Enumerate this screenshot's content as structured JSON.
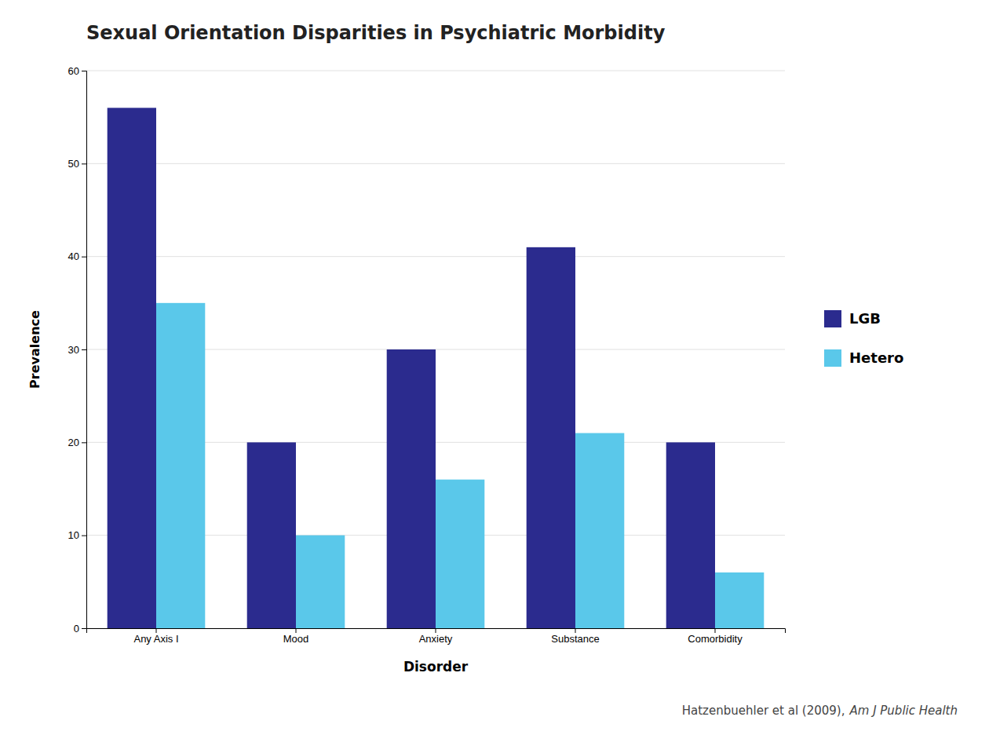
{
  "chart_data": {
    "type": "bar",
    "title": "Sexual Orientation Disparities in Psychiatric Morbidity",
    "categories": [
      "Any Axis I",
      "Mood",
      "Anxiety",
      "Substance",
      "Comorbidity"
    ],
    "series": [
      {
        "name": "LGB",
        "color": "#2b2b8e",
        "values": [
          56,
          20,
          30,
          41,
          20
        ]
      },
      {
        "name": "Hetero",
        "color": "#5ac8ea",
        "values": [
          35,
          10,
          16,
          21,
          6
        ]
      }
    ],
    "x_label": "Disorder",
    "y_label": "Prevalence",
    "ylim": [
      0,
      60
    ],
    "yticks": [
      0,
      10,
      20,
      30,
      40,
      50,
      60
    ],
    "grid": true,
    "legend": "right",
    "annotations": [
      "Hatzenbuehler et al (2009),",
      "Am J Public Health"
    ]
  }
}
